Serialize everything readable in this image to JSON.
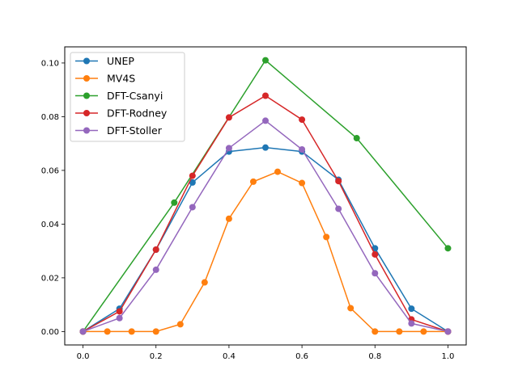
{
  "chart_data": {
    "type": "line",
    "title": "",
    "xlabel": "",
    "ylabel": "",
    "xlim": [
      -0.05,
      1.05
    ],
    "ylim": [
      -0.005,
      0.106
    ],
    "xticks": [
      "0.0",
      "0.2",
      "0.4",
      "0.6",
      "0.8",
      "1.0"
    ],
    "yticks": [
      "0.00",
      "0.02",
      "0.04",
      "0.06",
      "0.08",
      "0.10"
    ],
    "grid": false,
    "legend_position": "top-left",
    "series": [
      {
        "name": "UNEP",
        "color": "#1f77b4",
        "x": [
          0.0,
          0.1,
          0.2,
          0.3,
          0.4,
          0.5,
          0.6,
          0.7,
          0.8,
          0.9,
          1.0
        ],
        "y": [
          0.0,
          0.0085,
          0.0305,
          0.0555,
          0.067,
          0.0685,
          0.067,
          0.0565,
          0.031,
          0.0085,
          0.0
        ]
      },
      {
        "name": "MV4S",
        "color": "#ff7f0e",
        "x": [
          0.0,
          0.0667,
          0.1333,
          0.2,
          0.2667,
          0.3333,
          0.4,
          0.4667,
          0.5333,
          0.6,
          0.6667,
          0.7333,
          0.8,
          0.8667,
          0.9333,
          1.0
        ],
        "y": [
          0.0,
          0.0,
          0.0,
          0.0,
          0.0027,
          0.0183,
          0.042,
          0.0558,
          0.0595,
          0.0553,
          0.0352,
          0.0087,
          0.0,
          0.0,
          0.0,
          0.0
        ]
      },
      {
        "name": "DFT-Csanyi",
        "color": "#2ca02c",
        "x": [
          0.0,
          0.25,
          0.5,
          0.75,
          1.0
        ],
        "y": [
          0.0,
          0.048,
          0.101,
          0.072,
          0.031
        ]
      },
      {
        "name": "DFT-Rodney",
        "color": "#d62728",
        "x": [
          0.0,
          0.1,
          0.2,
          0.3,
          0.4,
          0.5,
          0.6,
          0.7,
          0.8,
          0.9,
          1.0
        ],
        "y": [
          0.0,
          0.0075,
          0.0305,
          0.058,
          0.0797,
          0.0878,
          0.0789,
          0.056,
          0.0287,
          0.0045,
          0.0
        ]
      },
      {
        "name": "DFT-Stoller",
        "color": "#9467bd",
        "x": [
          0.0,
          0.1,
          0.2,
          0.3,
          0.4,
          0.5,
          0.6,
          0.7,
          0.8,
          0.9,
          1.0
        ],
        "y": [
          0.0,
          0.005,
          0.023,
          0.0463,
          0.0683,
          0.0785,
          0.0678,
          0.0457,
          0.0217,
          0.003,
          0.0
        ]
      }
    ]
  }
}
